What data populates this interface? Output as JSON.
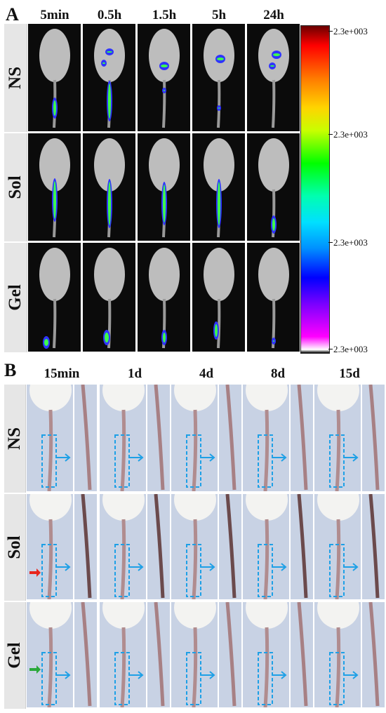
{
  "panelA": {
    "letter": "A",
    "columns": [
      "5min",
      "0.5h",
      "1.5h",
      "5h",
      "24h"
    ],
    "rows": [
      "NS",
      "Sol",
      "Gel"
    ],
    "colorbar": {
      "ticks": [
        "2.3e+003",
        "2.3e+003",
        "2.3e+003",
        "2.3e+003"
      ],
      "colors": [
        "#ff0000",
        "#ffff00",
        "#00ff00",
        "#00ffff",
        "#0000ff",
        "#ff00ff"
      ]
    }
  },
  "panelB": {
    "letter": "B",
    "columns": [
      "15min",
      "1d",
      "4d",
      "8d",
      "15d"
    ],
    "rows": [
      "NS",
      "Sol",
      "Gel"
    ],
    "colors": {
      "box": "#1ea0e6",
      "arrow": "#1ea0e6",
      "red_arrow": "#e8251c",
      "green_arrow": "#2aa83a"
    }
  }
}
